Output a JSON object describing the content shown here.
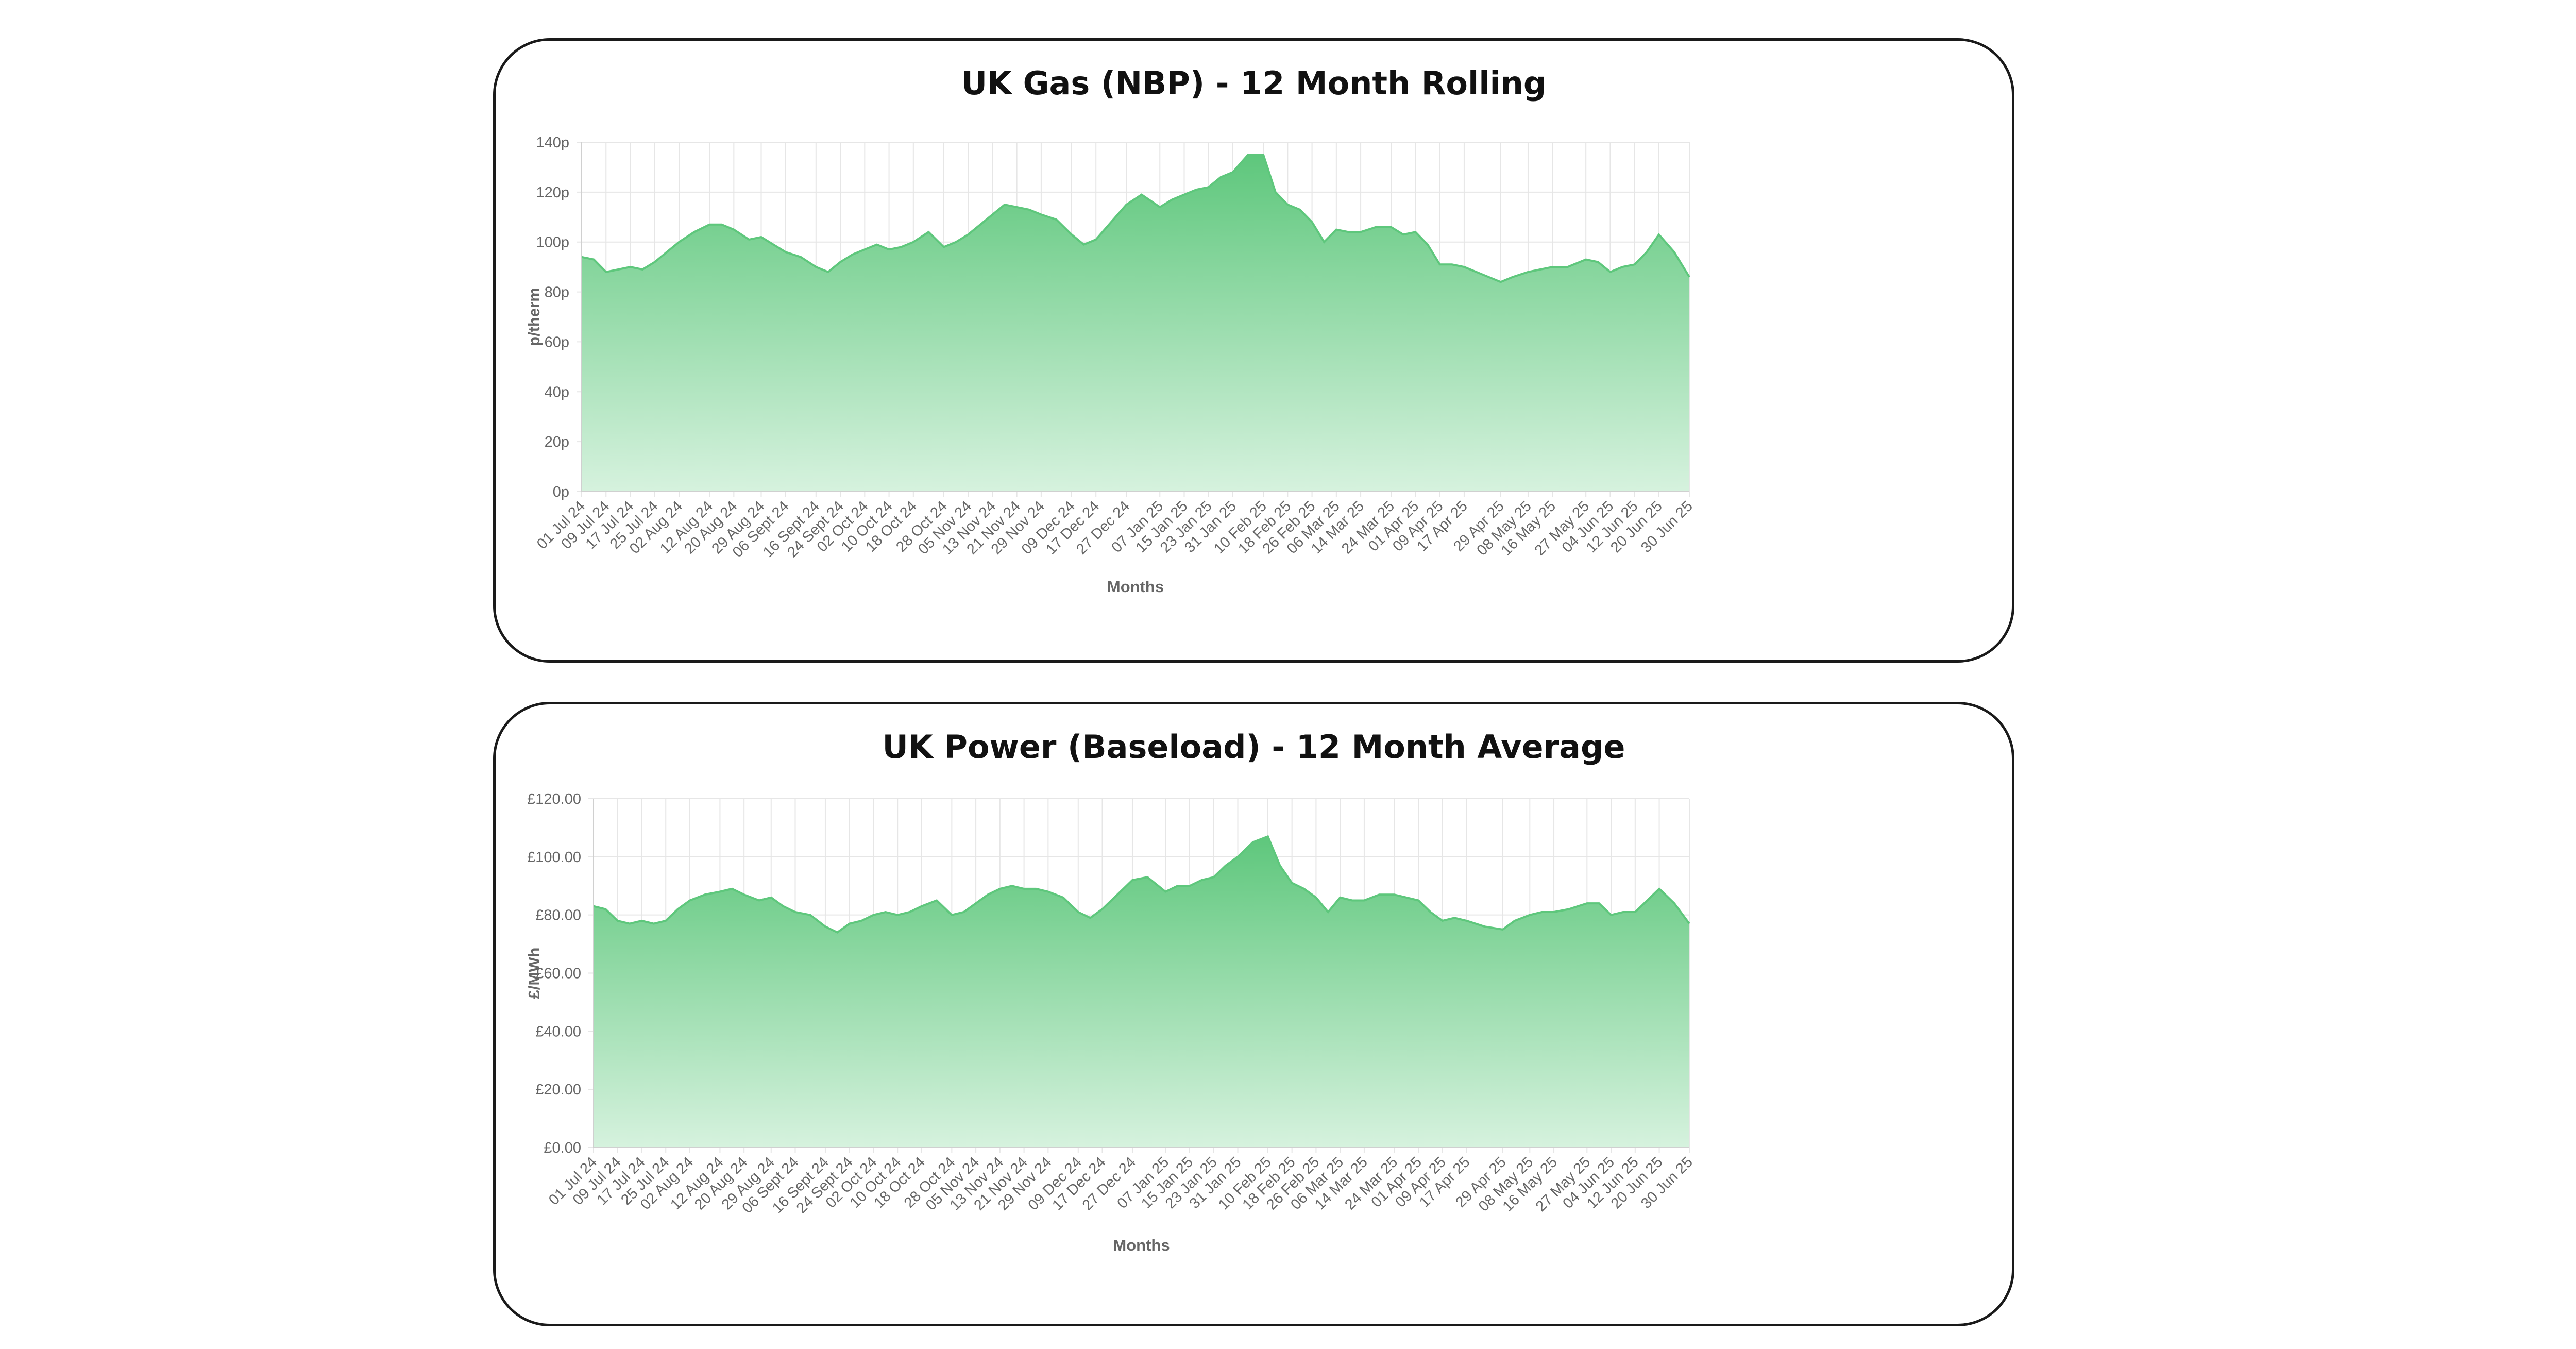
{
  "colors": {
    "area_line": "#5ec77c",
    "area_top": "#5ec77c",
    "area_bottom": "#d6f2de",
    "card_border": "#1a1a1a"
  },
  "chart_data": [
    {
      "id": "gas",
      "type": "area",
      "title": "UK Gas (NBP) - 12 Month Rolling",
      "xlabel": "Months",
      "ylabel": "p/therm",
      "ylim": [
        0,
        140
      ],
      "grid": true,
      "yticks": [
        0,
        20,
        40,
        60,
        80,
        100,
        120,
        140
      ],
      "ytick_labels": [
        "0p",
        "20p",
        "40p",
        "60p",
        "80p",
        "100p",
        "120p",
        "140p"
      ],
      "x_tick_labels": [
        "01 Jul 24",
        "09 Jul 24",
        "17 Jul 24",
        "25 Jul 24",
        "02 Aug 24",
        "12 Aug 24",
        "20 Aug 24",
        "29 Aug 24",
        "06 Sept 24",
        "16 Sept 24",
        "24 Sept 24",
        "02 Oct 24",
        "10 Oct 24",
        "18 Oct 24",
        "28 Oct 24",
        "05 Nov 24",
        "13 Nov 24",
        "21 Nov 24",
        "29 Nov 24",
        "09 Dec 24",
        "17 Dec 24",
        "27 Dec 24",
        "07 Jan 25",
        "15 Jan 25",
        "23 Jan 25",
        "31 Jan 25",
        "10 Feb 25",
        "18 Feb 25",
        "26 Feb 25",
        "06 Mar 25",
        "14 Mar 25",
        "24 Mar 25",
        "01 Apr 25",
        "09 Apr 25",
        "17 Apr 25",
        "29 Apr 25",
        "08 May 25",
        "16 May 25",
        "27 May 25",
        "04 Jun 25",
        "12 Jun 25",
        "20 Jun 25",
        "30 Jun 25"
      ],
      "series": [
        {
          "x": [
            "01 Jul 24",
            "05 Jul 24",
            "09 Jul 24",
            "13 Jul 24",
            "17 Jul 24",
            "21 Jul 24",
            "25 Jul 24",
            "29 Jul 24",
            "02 Aug 24",
            "07 Aug 24",
            "12 Aug 24",
            "16 Aug 24",
            "20 Aug 24",
            "25 Aug 24",
            "29 Aug 24",
            "02 Sept 24",
            "06 Sept 24",
            "11 Sept 24",
            "16 Sept 24",
            "20 Sept 24",
            "24 Sept 24",
            "28 Sept 24",
            "02 Oct 24",
            "06 Oct 24",
            "10 Oct 24",
            "14 Oct 24",
            "18 Oct 24",
            "23 Oct 24",
            "28 Oct 24",
            "01 Nov 24",
            "05 Nov 24",
            "09 Nov 24",
            "13 Nov 24",
            "17 Nov 24",
            "21 Nov 24",
            "25 Nov 24",
            "29 Nov 24",
            "04 Dec 24",
            "09 Dec 24",
            "13 Dec 24",
            "17 Dec 24",
            "22 Dec 24",
            "27 Dec 24",
            "01 Jan 25",
            "07 Jan 25",
            "11 Jan 25",
            "15 Jan 25",
            "19 Jan 25",
            "23 Jan 25",
            "27 Jan 25",
            "31 Jan 25",
            "05 Feb 25",
            "10 Feb 25",
            "14 Feb 25",
            "18 Feb 25",
            "22 Feb 25",
            "26 Feb 25",
            "02 Mar 25",
            "06 Mar 25",
            "10 Mar 25",
            "14 Mar 25",
            "19 Mar 25",
            "24 Mar 25",
            "28 Mar 25",
            "01 Apr 25",
            "05 Apr 25",
            "09 Apr 25",
            "13 Apr 25",
            "17 Apr 25",
            "23 Apr 25",
            "29 Apr 25",
            "03 May 25",
            "08 May 25",
            "12 May 25",
            "16 May 25",
            "21 May 25",
            "27 May 25",
            "31 May 25",
            "04 Jun 25",
            "08 Jun 25",
            "12 Jun 25",
            "16 Jun 25",
            "20 Jun 25",
            "25 Jun 25",
            "30 Jun 25"
          ],
          "values": [
            94,
            93,
            88,
            89,
            90,
            89,
            92,
            96,
            100,
            104,
            107,
            107,
            105,
            101,
            102,
            99,
            96,
            94,
            90,
            88,
            92,
            95,
            97,
            99,
            97,
            98,
            100,
            104,
            98,
            100,
            103,
            107,
            111,
            115,
            114,
            113,
            111,
            109,
            103,
            99,
            101,
            108,
            115,
            119,
            114,
            117,
            119,
            121,
            122,
            126,
            128,
            135,
            135,
            120,
            115,
            113,
            108,
            100,
            105,
            104,
            104,
            106,
            106,
            103,
            104,
            99,
            91,
            91,
            90,
            87,
            84,
            86,
            88,
            89,
            90,
            90,
            93,
            92,
            88,
            90,
            91,
            96,
            103,
            96,
            86
          ]
        }
      ]
    },
    {
      "id": "power",
      "type": "area",
      "title": "UK Power (Baseload) - 12 Month Average",
      "xlabel": "Months",
      "ylabel": "£/MWh",
      "ylim": [
        0,
        120
      ],
      "grid": true,
      "yticks": [
        0,
        20,
        40,
        60,
        80,
        100,
        120
      ],
      "ytick_labels": [
        "£0.00",
        "£20.00",
        "£40.00",
        "£60.00",
        "£80.00",
        "£100.00",
        "£120.00"
      ],
      "x_tick_labels": [
        "01 Jul 24",
        "09 Jul 24",
        "17 Jul 24",
        "25 Jul 24",
        "02 Aug 24",
        "12 Aug 24",
        "20 Aug 24",
        "29 Aug 24",
        "06 Sept 24",
        "16 Sept 24",
        "24 Sept 24",
        "02 Oct 24",
        "10 Oct 24",
        "18 Oct 24",
        "28 Oct 24",
        "05 Nov 24",
        "13 Nov 24",
        "21 Nov 24",
        "29 Nov 24",
        "09 Dec 24",
        "17 Dec 24",
        "27 Dec 24",
        "07 Jan 25",
        "15 Jan 25",
        "23 Jan 25",
        "31 Jan 25",
        "10 Feb 25",
        "18 Feb 25",
        "26 Feb 25",
        "06 Mar 25",
        "14 Mar 25",
        "24 Mar 25",
        "01 Apr 25",
        "09 Apr 25",
        "17 Apr 25",
        "29 Apr 25",
        "08 May 25",
        "16 May 25",
        "27 May 25",
        "04 Jun 25",
        "12 Jun 25",
        "20 Jun 25",
        "30 Jun 25"
      ],
      "series": [
        {
          "x": [
            "01 Jul 24",
            "05 Jul 24",
            "09 Jul 24",
            "13 Jul 24",
            "17 Jul 24",
            "21 Jul 24",
            "25 Jul 24",
            "29 Jul 24",
            "02 Aug 24",
            "07 Aug 24",
            "12 Aug 24",
            "16 Aug 24",
            "20 Aug 24",
            "25 Aug 24",
            "29 Aug 24",
            "02 Sept 24",
            "06 Sept 24",
            "11 Sept 24",
            "16 Sept 24",
            "20 Sept 24",
            "24 Sept 24",
            "28 Sept 24",
            "02 Oct 24",
            "06 Oct 24",
            "10 Oct 24",
            "14 Oct 24",
            "18 Oct 24",
            "23 Oct 24",
            "28 Oct 24",
            "01 Nov 24",
            "05 Nov 24",
            "09 Nov 24",
            "13 Nov 24",
            "17 Nov 24",
            "21 Nov 24",
            "25 Nov 24",
            "29 Nov 24",
            "04 Dec 24",
            "09 Dec 24",
            "13 Dec 24",
            "17 Dec 24",
            "22 Dec 24",
            "27 Dec 24",
            "01 Jan 25",
            "07 Jan 25",
            "11 Jan 25",
            "15 Jan 25",
            "19 Jan 25",
            "23 Jan 25",
            "27 Jan 25",
            "31 Jan 25",
            "05 Feb 25",
            "10 Feb 25",
            "14 Feb 25",
            "18 Feb 25",
            "22 Feb 25",
            "26 Feb 25",
            "02 Mar 25",
            "06 Mar 25",
            "10 Mar 25",
            "14 Mar 25",
            "19 Mar 25",
            "24 Mar 25",
            "28 Mar 25",
            "01 Apr 25",
            "05 Apr 25",
            "09 Apr 25",
            "13 Apr 25",
            "17 Apr 25",
            "23 Apr 25",
            "29 Apr 25",
            "03 May 25",
            "08 May 25",
            "12 May 25",
            "16 May 25",
            "21 May 25",
            "27 May 25",
            "31 May 25",
            "04 Jun 25",
            "08 Jun 25",
            "12 Jun 25",
            "16 Jun 25",
            "20 Jun 25",
            "25 Jun 25",
            "30 Jun 25"
          ],
          "values": [
            83,
            82,
            78,
            77,
            78,
            77,
            78,
            82,
            85,
            87,
            88,
            89,
            87,
            85,
            86,
            83,
            81,
            80,
            76,
            74,
            77,
            78,
            80,
            81,
            80,
            81,
            83,
            85,
            80,
            81,
            84,
            87,
            89,
            90,
            89,
            89,
            88,
            86,
            81,
            79,
            82,
            87,
            92,
            93,
            88,
            90,
            90,
            92,
            93,
            97,
            100,
            105,
            107,
            97,
            91,
            89,
            86,
            81,
            86,
            85,
            85,
            87,
            87,
            86,
            85,
            81,
            78,
            79,
            78,
            76,
            75,
            78,
            80,
            81,
            81,
            82,
            84,
            84,
            80,
            81,
            81,
            85,
            89,
            84,
            77
          ]
        }
      ]
    }
  ]
}
